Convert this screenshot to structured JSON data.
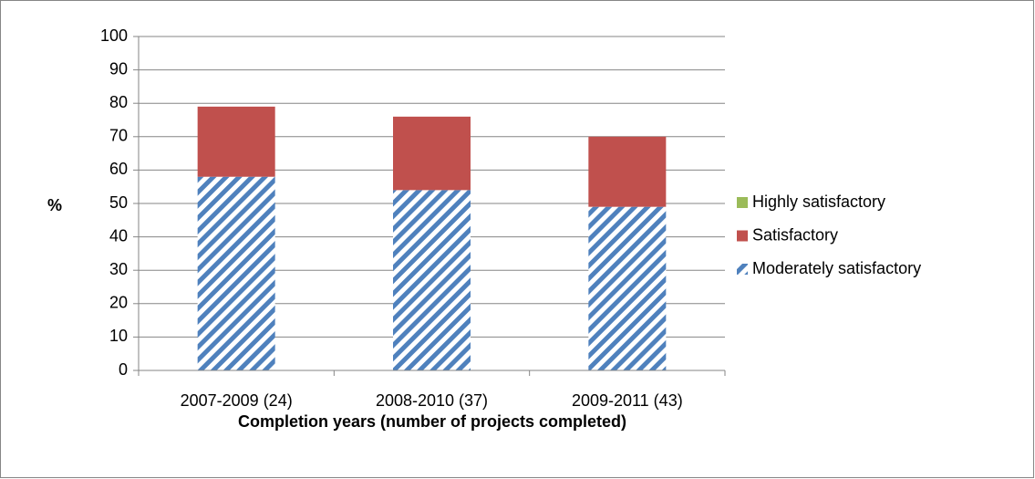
{
  "chart_data": {
    "type": "stacked-bar",
    "x_label": "Completion years (number of projects completed)",
    "y_label": "%",
    "categories": [
      "2007-2009 (24)",
      "2008-2010 (37)",
      "2009-2011 (43)"
    ],
    "series": [
      {
        "name": "Moderately satisfactory",
        "color": "#4f81bd",
        "pattern": "hatch",
        "values": [
          58,
          54,
          49
        ]
      },
      {
        "name": "Satisfactory",
        "color": "#c0504d",
        "values": [
          21,
          22,
          21
        ]
      },
      {
        "name": "Highly satisfactory",
        "color": "#9bbb59",
        "values": [
          0,
          0,
          0
        ]
      }
    ],
    "ylim": [
      0,
      100
    ],
    "yticks": [
      0,
      10,
      20,
      30,
      40,
      50,
      60,
      70,
      80,
      90,
      100
    ],
    "grid": true,
    "legend": "right"
  }
}
